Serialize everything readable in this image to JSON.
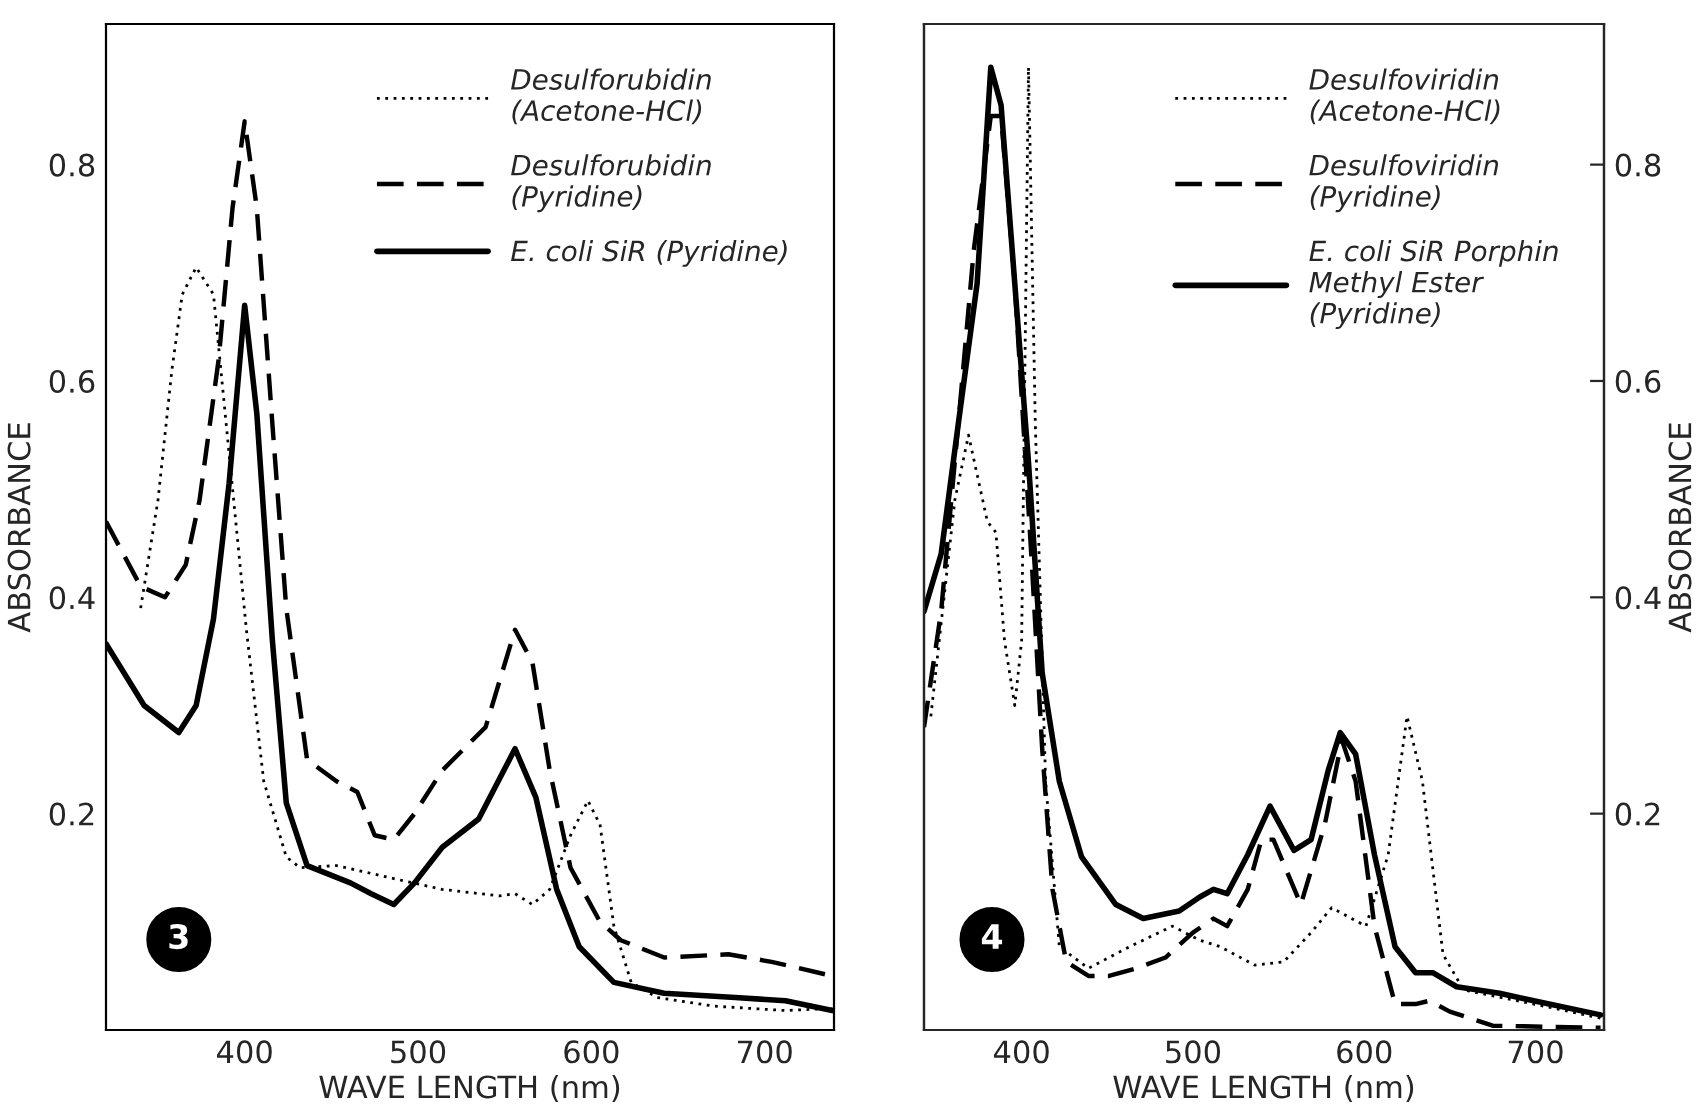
{
  "chart_data": [
    {
      "type": "line",
      "xlabel": "WAVE LENGTH (nm)",
      "ylabel": "ABSORBANCE",
      "xlim": [
        320,
        740
      ],
      "xticks": [
        400,
        500,
        600,
        700
      ],
      "ylim": [
        0,
        0.93
      ],
      "yticks": [
        0.2,
        0.4,
        0.6,
        0.8
      ],
      "grid": false,
      "legend": "top right",
      "annotations": [
        "3"
      ],
      "series": [
        {
          "name": "Desulforubidin\n(Acetone-HCl)",
          "color": "#000000",
          "line_style": "dotted",
          "x": [
            340,
            350,
            358,
            364,
            372,
            382,
            401,
            411,
            424,
            432,
            453,
            486,
            514,
            547,
            556,
            566,
            576,
            588,
            598,
            605,
            613,
            623,
            638,
            671,
            712,
            739
          ],
          "values": [
            0.39,
            0.49,
            0.61,
            0.68,
            0.705,
            0.68,
            0.37,
            0.23,
            0.16,
            0.15,
            0.152,
            0.14,
            0.13,
            0.124,
            0.126,
            0.116,
            0.13,
            0.18,
            0.212,
            0.19,
            0.096,
            0.044,
            0.03,
            0.022,
            0.018,
            0.02
          ]
        },
        {
          "name": "Desulforubidin\n(Pyridine)",
          "color": "#000000",
          "line_style": "dashed",
          "x": [
            320,
            340,
            354,
            366,
            374,
            385,
            393,
            400,
            407,
            416,
            424,
            436,
            453,
            465,
            475,
            486,
            498,
            514,
            539,
            556,
            566,
            576,
            588,
            605,
            617,
            642,
            679,
            704,
            739
          ],
          "values": [
            0.47,
            0.41,
            0.4,
            0.43,
            0.49,
            0.62,
            0.76,
            0.84,
            0.76,
            0.56,
            0.39,
            0.25,
            0.23,
            0.22,
            0.18,
            0.176,
            0.2,
            0.24,
            0.28,
            0.37,
            0.34,
            0.24,
            0.15,
            0.1,
            0.083,
            0.067,
            0.07,
            0.063,
            0.05
          ]
        },
        {
          "name": "E. coli SiR (Pyridine)",
          "color": "#000000",
          "line_style": "solid",
          "x": [
            320,
            342,
            362,
            372,
            382,
            391,
            400,
            407,
            416,
            424,
            436,
            461,
            473,
            486,
            498,
            514,
            535,
            556,
            568,
            580,
            593,
            613,
            642,
            683,
            712,
            739
          ],
          "values": [
            0.357,
            0.3,
            0.275,
            0.3,
            0.38,
            0.505,
            0.67,
            0.57,
            0.36,
            0.21,
            0.152,
            0.136,
            0.126,
            0.116,
            0.136,
            0.169,
            0.195,
            0.26,
            0.215,
            0.13,
            0.077,
            0.044,
            0.034,
            0.03,
            0.027,
            0.018
          ]
        }
      ]
    },
    {
      "type": "line",
      "xlabel": "WAVE LENGTH (nm)",
      "y2label": "ABSORBANCE",
      "xlim": [
        343,
        740
      ],
      "xticks": [
        400,
        500,
        600,
        700
      ],
      "y2lim": [
        0,
        0.93
      ],
      "y2ticks": [
        0.2,
        0.4,
        0.6,
        0.8
      ],
      "grid": false,
      "legend": "top right",
      "annotations": [
        "4"
      ],
      "series": [
        {
          "name": "Desulfoviridin\n(Acetone-HCl)",
          "color": "#000000",
          "line_style": "dotted",
          "axis": "y2",
          "x": [
            347,
            361,
            369,
            380,
            385,
            390,
            396,
            400,
            404,
            408,
            414,
            422,
            439,
            463,
            488,
            504,
            516,
            536,
            553,
            569,
            581,
            601,
            614,
            625,
            634,
            646,
            658,
            699,
            738
          ],
          "values": [
            0.29,
            0.49,
            0.55,
            0.47,
            0.46,
            0.36,
            0.3,
            0.36,
            0.89,
            0.56,
            0.23,
            0.077,
            0.057,
            0.077,
            0.096,
            0.083,
            0.077,
            0.06,
            0.063,
            0.09,
            0.113,
            0.096,
            0.162,
            0.29,
            0.23,
            0.07,
            0.037,
            0.024,
            0.011
          ]
        },
        {
          "name": "Desulfoviridin\n(Pyridine)",
          "color": "#000000",
          "line_style": "dashed",
          "axis": "y2",
          "x": [
            343,
            353,
            363,
            372,
            382,
            388,
            396,
            406,
            412,
            418,
            426,
            439,
            451,
            467,
            484,
            500,
            512,
            520,
            532,
            540,
            547,
            563,
            577,
            587,
            595,
            606,
            618,
            630,
            638,
            650,
            675,
            738
          ],
          "values": [
            0.28,
            0.387,
            0.56,
            0.72,
            0.845,
            0.845,
            0.69,
            0.43,
            0.26,
            0.13,
            0.063,
            0.05,
            0.05,
            0.057,
            0.067,
            0.09,
            0.103,
            0.096,
            0.13,
            0.176,
            0.176,
            0.116,
            0.19,
            0.268,
            0.23,
            0.096,
            0.024,
            0.024,
            0.027,
            0.017,
            0.004,
            0.002
          ]
        },
        {
          "name": "E. coli SiR Porphin\nMethyl Ester\n(Pyridine)",
          "color": "#000000",
          "line_style": "solid",
          "axis": "y2",
          "x": [
            343,
            353,
            363,
            374,
            382,
            388,
            396,
            404,
            412,
            422,
            435,
            455,
            471,
            492,
            504,
            512,
            520,
            532,
            545,
            559,
            569,
            579,
            586,
            595,
            606,
            618,
            630,
            640,
            654,
            679,
            699,
            738
          ],
          "values": [
            0.387,
            0.44,
            0.56,
            0.69,
            0.89,
            0.855,
            0.69,
            0.525,
            0.33,
            0.23,
            0.16,
            0.116,
            0.103,
            0.11,
            0.123,
            0.13,
            0.126,
            0.162,
            0.207,
            0.166,
            0.176,
            0.24,
            0.275,
            0.255,
            0.162,
            0.077,
            0.053,
            0.053,
            0.04,
            0.034,
            0.027,
            0.014
          ]
        }
      ]
    }
  ]
}
